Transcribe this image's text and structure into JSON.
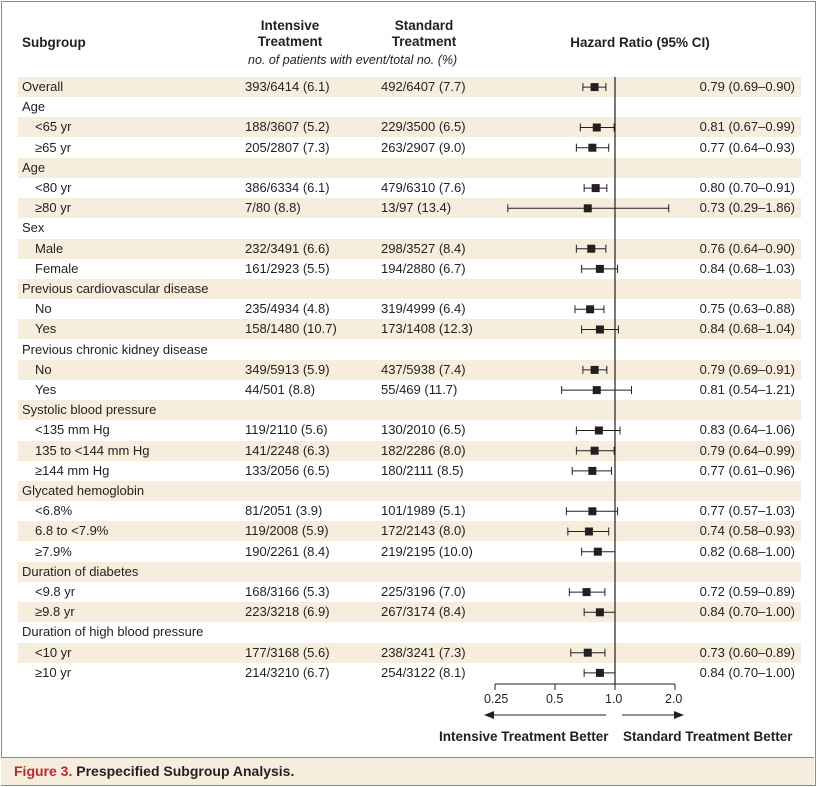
{
  "figure": {
    "number_label": "Figure 3.",
    "title": "Prespecified Subgroup Analysis."
  },
  "headers": {
    "subgroup": "Subgroup",
    "intensive_line1": "Intensive",
    "intensive_line2": "Treatment",
    "standard_line1": "Standard",
    "standard_line2": "Treatment",
    "hazard_ratio": "Hazard Ratio (95% CI)",
    "subheader": "no. of patients with event/total no. (%)"
  },
  "axis": {
    "ticks": [
      "0.25",
      "0.5",
      "1.0",
      "2.0"
    ],
    "left_direction": "Intensive Treatment Better",
    "right_direction": "Standard Treatment Better"
  },
  "rows": [
    {
      "label": "Overall",
      "level": 0,
      "intensive": "393/6414 (6.1)",
      "standard": "492/6407 (7.7)",
      "hr_text": "0.79 (0.69–0.90)"
    },
    {
      "label": "Age",
      "level": 0
    },
    {
      "label": "<65 yr",
      "level": 1,
      "intensive": "188/3607 (5.2)",
      "standard": "229/3500 (6.5)",
      "hr_text": "0.81 (0.67–0.99)"
    },
    {
      "label": "≥65 yr",
      "level": 1,
      "intensive": "205/2807 (7.3)",
      "standard": "263/2907 (9.0)",
      "hr_text": "0.77 (0.64–0.93)"
    },
    {
      "label": "Age",
      "level": 0
    },
    {
      "label": "<80 yr",
      "level": 1,
      "intensive": "386/6334 (6.1)",
      "standard": "479/6310 (7.6)",
      "hr_text": "0.80 (0.70–0.91)"
    },
    {
      "label": "≥80 yr",
      "level": 1,
      "intensive": "7/80 (8.8)",
      "standard": "13/97 (13.4)",
      "hr_text": "0.73 (0.29–1.86)"
    },
    {
      "label": "Sex",
      "level": 0
    },
    {
      "label": "Male",
      "level": 1,
      "intensive": "232/3491 (6.6)",
      "standard": "298/3527 (8.4)",
      "hr_text": "0.76 (0.64–0.90)"
    },
    {
      "label": "Female",
      "level": 1,
      "intensive": "161/2923 (5.5)",
      "standard": "194/2880 (6.7)",
      "hr_text": "0.84 (0.68–1.03)"
    },
    {
      "label": "Previous cardiovascular disease",
      "level": 0
    },
    {
      "label": "No",
      "level": 1,
      "intensive": "235/4934 (4.8)",
      "standard": "319/4999 (6.4)",
      "hr_text": "0.75 (0.63–0.88)"
    },
    {
      "label": "Yes",
      "level": 1,
      "intensive": "158/1480 (10.7)",
      "standard": "173/1408 (12.3)",
      "hr_text": "0.84 (0.68–1.04)"
    },
    {
      "label": "Previous chronic kidney disease",
      "level": 0
    },
    {
      "label": "No",
      "level": 1,
      "intensive": "349/5913 (5.9)",
      "standard": "437/5938 (7.4)",
      "hr_text": "0.79 (0.69–0.91)"
    },
    {
      "label": "Yes",
      "level": 1,
      "intensive": "44/501 (8.8)",
      "standard": "55/469 (11.7)",
      "hr_text": "0.81 (0.54–1.21)"
    },
    {
      "label": "Systolic blood pressure",
      "level": 0
    },
    {
      "label": "<135 mm Hg",
      "level": 1,
      "intensive": "119/2110 (5.6)",
      "standard": "130/2010 (6.5)",
      "hr_text": "0.83 (0.64–1.06)"
    },
    {
      "label": "135 to <144 mm Hg",
      "level": 1,
      "intensive": "141/2248 (6.3)",
      "standard": "182/2286 (8.0)",
      "hr_text": "0.79 (0.64–0.99)"
    },
    {
      "label": "≥144 mm Hg",
      "level": 1,
      "intensive": "133/2056 (6.5)",
      "standard": "180/2111 (8.5)",
      "hr_text": "0.77 (0.61–0.96)"
    },
    {
      "label": "Glycated hemoglobin",
      "level": 0
    },
    {
      "label": "<6.8%",
      "level": 1,
      "intensive": "81/2051 (3.9)",
      "standard": "101/1989 (5.1)",
      "hr_text": "0.77 (0.57–1.03)"
    },
    {
      "label": "6.8 to <7.9%",
      "level": 1,
      "intensive": "119/2008 (5.9)",
      "standard": "172/2143 (8.0)",
      "hr_text": "0.74 (0.58–0.93)"
    },
    {
      "label": "≥7.9%",
      "level": 1,
      "intensive": "190/2261 (8.4)",
      "standard": "219/2195 (10.0)",
      "hr_text": "0.82 (0.68–1.00)"
    },
    {
      "label": "Duration of diabetes",
      "level": 0
    },
    {
      "label": "<9.8 yr",
      "level": 1,
      "intensive": "168/3166 (5.3)",
      "standard": "225/3196 (7.0)",
      "hr_text": "0.72 (0.59–0.89)"
    },
    {
      "label": "≥9.8 yr",
      "level": 1,
      "intensive": "223/3218 (6.9)",
      "standard": "267/3174 (8.4)",
      "hr_text": "0.84 (0.70–1.00)"
    },
    {
      "label": "Duration of high blood pressure",
      "level": 0
    },
    {
      "label": "<10 yr",
      "level": 1,
      "intensive": "177/3168 (5.6)",
      "standard": "238/3241 (7.3)",
      "hr_text": "0.73 (0.60–0.89)"
    },
    {
      "label": "≥10 yr",
      "level": 1,
      "intensive": "214/3210 (6.7)",
      "standard": "254/3122 (8.1)",
      "hr_text": "0.84 (0.70–1.00)"
    }
  ],
  "colors": {
    "row_shade": "#f6eddc",
    "caption_accent": "#c1272d",
    "marker": "#231f20"
  },
  "chart_data": {
    "type": "forest",
    "x_scale": "log2",
    "xlim": [
      0.25,
      2.0
    ],
    "x_ticks": [
      0.25,
      0.5,
      1.0,
      2.0
    ],
    "reference_line": 1.0,
    "xlabel_left": "Intensive Treatment Better",
    "xlabel_right": "Standard Treatment Better",
    "points": [
      {
        "row": 0,
        "hr": 0.79,
        "lo": 0.69,
        "hi": 0.9
      },
      {
        "row": 2,
        "hr": 0.81,
        "lo": 0.67,
        "hi": 0.99
      },
      {
        "row": 3,
        "hr": 0.77,
        "lo": 0.64,
        "hi": 0.93
      },
      {
        "row": 5,
        "hr": 0.8,
        "lo": 0.7,
        "hi": 0.91
      },
      {
        "row": 6,
        "hr": 0.73,
        "lo": 0.29,
        "hi": 1.86
      },
      {
        "row": 8,
        "hr": 0.76,
        "lo": 0.64,
        "hi": 0.9
      },
      {
        "row": 9,
        "hr": 0.84,
        "lo": 0.68,
        "hi": 1.03
      },
      {
        "row": 11,
        "hr": 0.75,
        "lo": 0.63,
        "hi": 0.88
      },
      {
        "row": 12,
        "hr": 0.84,
        "lo": 0.68,
        "hi": 1.04
      },
      {
        "row": 14,
        "hr": 0.79,
        "lo": 0.69,
        "hi": 0.91
      },
      {
        "row": 15,
        "hr": 0.81,
        "lo": 0.54,
        "hi": 1.21
      },
      {
        "row": 17,
        "hr": 0.83,
        "lo": 0.64,
        "hi": 1.06
      },
      {
        "row": 18,
        "hr": 0.79,
        "lo": 0.64,
        "hi": 0.99
      },
      {
        "row": 19,
        "hr": 0.77,
        "lo": 0.61,
        "hi": 0.96
      },
      {
        "row": 21,
        "hr": 0.77,
        "lo": 0.57,
        "hi": 1.03
      },
      {
        "row": 22,
        "hr": 0.74,
        "lo": 0.58,
        "hi": 0.93
      },
      {
        "row": 23,
        "hr": 0.82,
        "lo": 0.68,
        "hi": 1.0
      },
      {
        "row": 25,
        "hr": 0.72,
        "lo": 0.59,
        "hi": 0.89
      },
      {
        "row": 26,
        "hr": 0.84,
        "lo": 0.7,
        "hi": 1.0
      },
      {
        "row": 28,
        "hr": 0.73,
        "lo": 0.6,
        "hi": 0.89
      },
      {
        "row": 29,
        "hr": 0.84,
        "lo": 0.7,
        "hi": 1.0
      }
    ]
  }
}
